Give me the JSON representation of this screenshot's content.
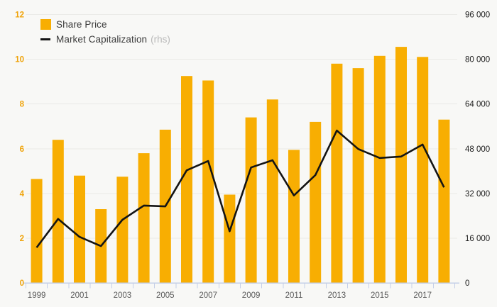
{
  "colors": {
    "background": "#f8f8f6",
    "bar": "#f8ae02",
    "line": "#141414",
    "gridline": "#eaeae7",
    "axis_line": "#c5cfe8",
    "left_axis_label": "#efa30a",
    "right_axis_label": "#1c1c1c",
    "x_axis_label": "#5a5a5a"
  },
  "legend": {
    "share_price_label": "Share Price",
    "market_cap_label": "Market Capitalization",
    "rhs_suffix": "(rhs)"
  },
  "chart_data": {
    "type": "bar",
    "title": "",
    "xlabel": "",
    "ylabel": "",
    "grid": true,
    "legend_position": "top-left",
    "x": [
      1999,
      2000,
      2001,
      2002,
      2003,
      2004,
      2005,
      2006,
      2007,
      2008,
      2009,
      2010,
      2011,
      2012,
      2013,
      2014,
      2015,
      2016,
      2017,
      2018
    ],
    "x_tick_labels": [
      "1999",
      "2001",
      "2003",
      "2005",
      "2007",
      "2009",
      "2011",
      "2013",
      "2015",
      "2017"
    ],
    "series": [
      {
        "name": "Share Price",
        "type": "bar",
        "axis": "left",
        "color": "#f8ae02",
        "values": [
          4.65,
          6.4,
          4.8,
          3.3,
          4.75,
          5.8,
          6.85,
          9.25,
          9.05,
          3.95,
          7.4,
          8.2,
          5.95,
          7.2,
          9.8,
          9.6,
          10.15,
          10.55,
          10.1,
          7.3
        ]
      },
      {
        "name": "Market Capitalization (rhs)",
        "type": "line",
        "axis": "right",
        "color": "#141414",
        "values": [
          12700,
          22900,
          16500,
          13200,
          22600,
          27700,
          27400,
          40300,
          43600,
          18500,
          41300,
          43900,
          31300,
          38600,
          54500,
          47900,
          44700,
          45200,
          49500,
          34200
        ]
      }
    ],
    "left_axis": {
      "min": 0,
      "max": 12,
      "ticks": [
        0,
        2,
        4,
        6,
        8,
        10,
        12
      ]
    },
    "right_axis": {
      "min": 0,
      "max": 96000,
      "ticks": [
        0,
        16000,
        32000,
        48000,
        64000,
        80000,
        96000
      ],
      "tick_labels": [
        "0",
        "16 000",
        "32 000",
        "48 000",
        "64 000",
        "80 000",
        "96 000"
      ]
    }
  }
}
